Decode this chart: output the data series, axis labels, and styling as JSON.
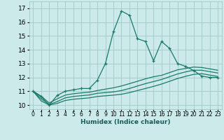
{
  "xlabel": "Humidex (Indice chaleur)",
  "ylabel": "",
  "xlim": [
    -0.5,
    23.5
  ],
  "ylim": [
    9.7,
    17.5
  ],
  "background_color": "#cdeaea",
  "grid_color": "#a0c8c8",
  "line_color": "#1a7a6a",
  "x_ticks": [
    0,
    1,
    2,
    3,
    4,
    5,
    6,
    7,
    8,
    9,
    10,
    11,
    12,
    13,
    14,
    15,
    16,
    17,
    18,
    19,
    20,
    21,
    22,
    23
  ],
  "y_ticks": [
    10,
    11,
    12,
    13,
    14,
    15,
    16,
    17
  ],
  "line1_x": [
    0,
    1,
    2,
    3,
    4,
    5,
    6,
    7,
    8,
    9,
    10,
    11,
    12,
    13,
    14,
    15,
    16,
    17,
    18,
    19,
    20,
    21,
    22,
    23
  ],
  "line1_y": [
    11.0,
    10.6,
    10.0,
    10.7,
    11.0,
    11.1,
    11.2,
    11.2,
    11.8,
    13.0,
    15.3,
    16.8,
    16.5,
    14.8,
    14.6,
    13.2,
    14.6,
    14.1,
    13.0,
    12.8,
    12.5,
    12.1,
    12.0,
    12.0
  ],
  "line2_x": [
    0,
    1,
    2,
    3,
    4,
    5,
    6,
    7,
    8,
    9,
    10,
    11,
    12,
    13,
    14,
    15,
    16,
    17,
    18,
    19,
    20,
    21,
    22,
    23
  ],
  "line2_y": [
    11.0,
    10.65,
    10.15,
    10.45,
    10.72,
    10.82,
    10.88,
    10.93,
    11.05,
    11.15,
    11.25,
    11.38,
    11.55,
    11.72,
    11.9,
    12.05,
    12.15,
    12.35,
    12.55,
    12.65,
    12.75,
    12.72,
    12.62,
    12.52
  ],
  "line3_x": [
    0,
    1,
    2,
    3,
    4,
    5,
    6,
    7,
    8,
    9,
    10,
    11,
    12,
    13,
    14,
    15,
    16,
    17,
    18,
    19,
    20,
    21,
    22,
    23
  ],
  "line3_y": [
    11.0,
    10.45,
    10.05,
    10.25,
    10.52,
    10.62,
    10.68,
    10.73,
    10.85,
    10.9,
    10.95,
    11.05,
    11.2,
    11.38,
    11.55,
    11.7,
    11.85,
    12.05,
    12.25,
    12.4,
    12.52,
    12.52,
    12.42,
    12.32
  ],
  "line4_x": [
    0,
    1,
    2,
    3,
    4,
    5,
    6,
    7,
    8,
    9,
    10,
    11,
    12,
    13,
    14,
    15,
    16,
    17,
    18,
    19,
    20,
    21,
    22,
    23
  ],
  "line4_y": [
    11.0,
    10.3,
    10.0,
    10.12,
    10.33,
    10.42,
    10.47,
    10.52,
    10.62,
    10.67,
    10.72,
    10.78,
    10.9,
    11.05,
    11.2,
    11.35,
    11.52,
    11.72,
    11.92,
    12.08,
    12.22,
    12.27,
    12.17,
    12.07
  ]
}
